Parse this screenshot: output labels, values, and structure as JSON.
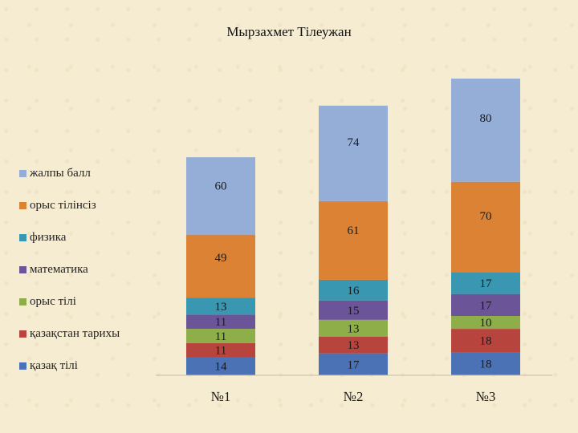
{
  "chart_data": {
    "type": "bar",
    "stacked": true,
    "title": "Мырзахмет Тілеужан",
    "categories": [
      "№1",
      "№2",
      "№3"
    ],
    "series": [
      {
        "name": "қазақ тілі",
        "color": "#4a72b5",
        "values": [
          14,
          17,
          18
        ]
      },
      {
        "name": "қазақстан тарихы",
        "color": "#b8443e",
        "values": [
          11,
          13,
          18
        ]
      },
      {
        "name": "орыс тілі",
        "color": "#8eae4a",
        "values": [
          11,
          13,
          10
        ]
      },
      {
        "name": "математика",
        "color": "#6b5498",
        "values": [
          11,
          15,
          17
        ]
      },
      {
        "name": "физика",
        "color": "#3a97b1",
        "values": [
          13,
          16,
          17
        ]
      },
      {
        "name": "орыс тілінсіз",
        "color": "#db8234",
        "values": [
          49,
          61,
          70
        ]
      },
      {
        "name": "жалпы балл",
        "color": "#94aed8",
        "values": [
          60,
          74,
          80
        ]
      }
    ],
    "legend_position": "left",
    "grid": false
  }
}
